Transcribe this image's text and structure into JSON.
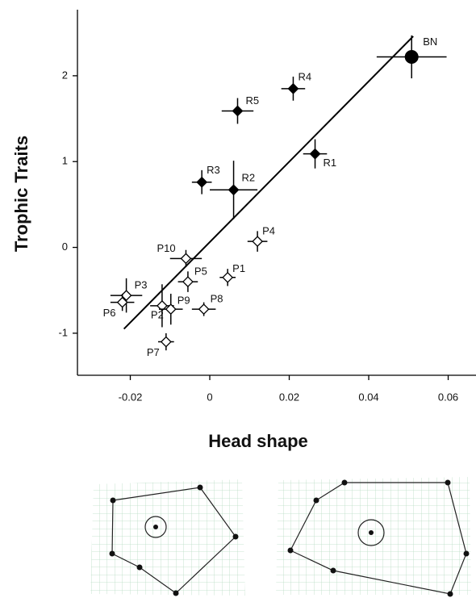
{
  "chart_data": {
    "type": "scatter",
    "xlabel": "Head shape",
    "ylabel": "Trophic Traits",
    "xlim": [
      -0.0333,
      0.067
    ],
    "ylim": [
      -1.49,
      2.77
    ],
    "xticks": [
      -0.02,
      0,
      0.02,
      0.04,
      0.06
    ],
    "yticks": [
      -1,
      0,
      1,
      2
    ],
    "fit_line": {
      "x": [
        -0.0216,
        0.0512
      ],
      "y": [
        -0.95,
        2.46
      ]
    },
    "series": [
      {
        "marker": "diamond",
        "filled": true,
        "color": "#000",
        "labels": [
          "R1",
          "R2",
          "R3",
          "R4",
          "R5"
        ],
        "x": [
          0.0265,
          0.006,
          -0.002,
          0.021,
          0.007
        ],
        "y": [
          1.09,
          0.67,
          0.76,
          1.85,
          1.59
        ],
        "xerr": [
          0.003,
          0.006,
          0.0025,
          0.003,
          0.004
        ],
        "yerr": [
          0.17,
          0.34,
          0.14,
          0.14,
          0.15
        ]
      },
      {
        "marker": "diamond",
        "filled": false,
        "color": "#000",
        "labels": [
          "P1",
          "P2",
          "P3",
          "P4",
          "P5",
          "P6",
          "P7",
          "P8",
          "P9",
          "P10"
        ],
        "x": [
          0.0045,
          -0.012,
          -0.021,
          0.012,
          -0.0055,
          -0.022,
          -0.011,
          -0.0015,
          -0.0098,
          -0.006
        ],
        "y": [
          -0.35,
          -0.68,
          -0.56,
          0.07,
          -0.4,
          -0.64,
          -1.1,
          -0.72,
          -0.72,
          -0.13
        ],
        "xerr": [
          0.002,
          0.003,
          0.004,
          0.0025,
          0.0025,
          0.003,
          0.002,
          0.003,
          0.003,
          0.004
        ],
        "yerr": [
          0.1,
          0.25,
          0.2,
          0.12,
          0.12,
          0.1,
          0.1,
          0.08,
          0.18,
          0.1
        ]
      },
      {
        "marker": "circle",
        "filled": true,
        "color": "#000",
        "labels": [
          "BN"
        ],
        "x": [
          0.0508
        ],
        "y": [
          2.22
        ],
        "xerr": [
          0.0088
        ],
        "yerr": [
          0.25
        ]
      }
    ]
  }
}
